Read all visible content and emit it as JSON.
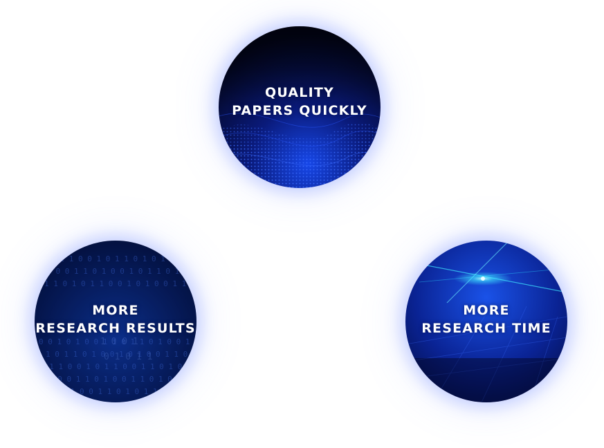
{
  "circles": {
    "quality": {
      "line1": "QUALITY",
      "line2": "PAPERS QUICKLY"
    },
    "results": {
      "line1": "MORE",
      "line2": "RESEARCH RESULTS"
    },
    "time": {
      "line1": "MORE",
      "line2": "RESEARCH TIME"
    }
  },
  "colors": {
    "background": "#ffffff",
    "deep_navy": "#03082a",
    "accent_blue": "#1a4dff",
    "glow_cyan": "#3fe8ff"
  }
}
